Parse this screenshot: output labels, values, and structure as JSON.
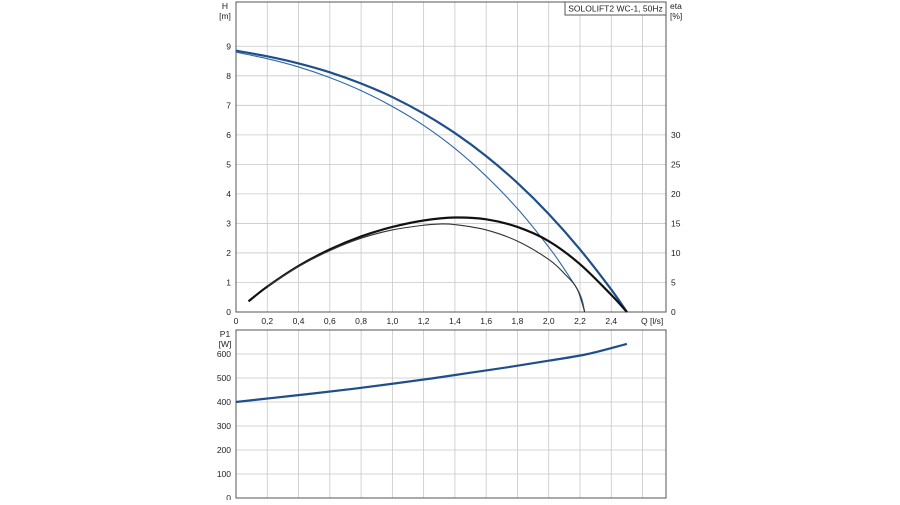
{
  "chart_data": [
    {
      "type": "line",
      "title": "SOLOLIFT2 WC-1, 50Hz",
      "ylabel_left": "H",
      "ylabel_left_unit": "[m]",
      "ylabel_right": "eta",
      "ylabel_right_unit": "[%]",
      "xlabel": "Q [l/s]",
      "xlim": [
        0,
        2.75
      ],
      "ylim_left": [
        0,
        10.5
      ],
      "ylim_right": [
        0,
        52.5
      ],
      "grid": true,
      "x_ticks": [
        "0",
        "0,2",
        "0,4",
        "0,6",
        "0,8",
        "1,0",
        "1,2",
        "1,4",
        "1,6",
        "1,8",
        "2,0",
        "2,2",
        "2,4"
      ],
      "y_left_ticks": [
        "0",
        "1",
        "2",
        "3",
        "4",
        "5",
        "6",
        "7",
        "8",
        "9"
      ],
      "y_right_ticks": [
        "0",
        "5",
        "10",
        "15",
        "20",
        "25",
        "30"
      ],
      "series": [
        {
          "axis": "left",
          "color": "#1f4f8a",
          "weight": "thick",
          "x": [
            0,
            0.2,
            0.4,
            0.6,
            0.8,
            1.0,
            1.2,
            1.4,
            1.6,
            1.8,
            2.0,
            2.2,
            2.4,
            2.5
          ],
          "y": [
            8.85,
            8.66,
            8.42,
            8.12,
            7.74,
            7.28,
            6.72,
            6.06,
            5.28,
            4.37,
            3.32,
            2.12,
            0.76,
            0
          ]
        },
        {
          "axis": "left",
          "color": "#2f67a8",
          "weight": "thin",
          "x": [
            0,
            0.2,
            0.4,
            0.6,
            0.8,
            1.0,
            1.2,
            1.4,
            1.6,
            1.8,
            2.0,
            2.1,
            2.2,
            2.23
          ],
          "y": [
            8.8,
            8.58,
            8.3,
            7.94,
            7.5,
            6.96,
            6.32,
            5.54,
            4.6,
            3.5,
            2.2,
            1.45,
            0.6,
            0
          ]
        },
        {
          "axis": "right",
          "color": "#111111",
          "weight": "thick",
          "x": [
            0.08,
            0.2,
            0.4,
            0.6,
            0.8,
            1.0,
            1.2,
            1.4,
            1.6,
            1.8,
            2.0,
            2.2,
            2.4,
            2.5
          ],
          "y": [
            1.8,
            4.3,
            7.8,
            10.6,
            12.8,
            14.4,
            15.5,
            16.0,
            15.7,
            14.4,
            12.0,
            8.1,
            2.9,
            0
          ]
        },
        {
          "axis": "right",
          "color": "#333333",
          "weight": "thin",
          "x": [
            0.2,
            0.4,
            0.6,
            0.8,
            1.0,
            1.2,
            1.3,
            1.4,
            1.6,
            1.8,
            2.0,
            2.1,
            2.18,
            2.23
          ],
          "y": [
            4.3,
            7.7,
            10.4,
            12.5,
            13.9,
            14.7,
            14.9,
            14.8,
            13.9,
            12.0,
            8.9,
            6.5,
            4.0,
            0
          ]
        }
      ]
    },
    {
      "type": "line",
      "ylabel": "P1",
      "ylabel_unit": "[W]",
      "xlim": [
        0,
        2.75
      ],
      "ylim": [
        0,
        700
      ],
      "grid": true,
      "y_ticks": [
        "0",
        "100",
        "200",
        "300",
        "400",
        "500",
        "600"
      ],
      "series": [
        {
          "color": "#1f4f8a",
          "weight": "thick",
          "x": [
            0,
            0.25,
            0.5,
            0.75,
            1.0,
            1.25,
            1.5,
            1.75,
            2.0,
            2.25,
            2.5
          ],
          "y": [
            400,
            418,
            436,
            455,
            476,
            498,
            522,
            546,
            572,
            600,
            642
          ]
        }
      ]
    }
  ]
}
